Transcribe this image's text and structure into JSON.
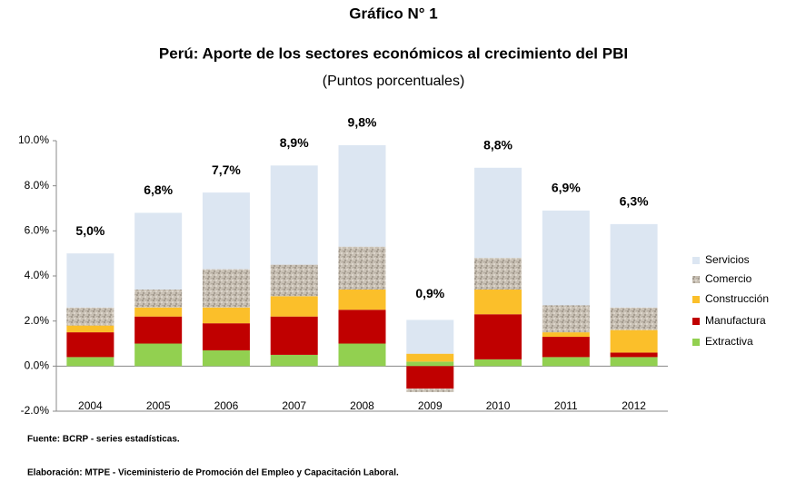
{
  "chart_data": {
    "type": "stacked_bar",
    "title": "Gráfico N° 1",
    "subtitle": "Perú: Aporte de los sectores económicos al crecimiento del PBI",
    "unit_label": "(Puntos porcentuales)",
    "categories": [
      "2004",
      "2005",
      "2006",
      "2007",
      "2008",
      "2009",
      "2010",
      "2011",
      "2012"
    ],
    "series": [
      {
        "name": "Extractiva",
        "color": "#92d050",
        "values": [
          0.4,
          1.0,
          0.7,
          0.5,
          1.0,
          0.2,
          0.3,
          0.4,
          0.4
        ]
      },
      {
        "name": "Manufactura",
        "color": "#c00000",
        "values": [
          1.1,
          1.2,
          1.2,
          1.7,
          1.5,
          -1.0,
          2.0,
          0.9,
          0.2
        ]
      },
      {
        "name": "Construcción",
        "color": "#fbbf2a",
        "values": [
          0.3,
          0.4,
          0.7,
          0.9,
          0.9,
          0.35,
          1.1,
          0.2,
          1.0
        ]
      },
      {
        "name": "Comercio",
        "color": "#bdb5a8",
        "values": [
          0.8,
          0.8,
          1.7,
          1.4,
          1.9,
          -0.15,
          1.4,
          1.2,
          1.0
        ]
      },
      {
        "name": "Servicios",
        "color": "#dce6f2",
        "values": [
          2.4,
          3.4,
          3.4,
          4.4,
          4.5,
          1.5,
          4.0,
          4.2,
          3.7
        ]
      }
    ],
    "total_labels": [
      "5,0%",
      "6,8%",
      "7,7%",
      "8,9%",
      "9,8%",
      "0,9%",
      "8,8%",
      "6,9%",
      "6,3%"
    ],
    "ylim": [
      -2,
      10
    ],
    "yticks": [
      {
        "value": -2,
        "label": "-2.0%"
      },
      {
        "value": 0,
        "label": "0.0%"
      },
      {
        "value": 2,
        "label": "2.0%"
      },
      {
        "value": 4,
        "label": "4.0%"
      },
      {
        "value": 6,
        "label": "6.0%"
      },
      {
        "value": 8,
        "label": "8.0%"
      },
      {
        "value": 10,
        "label": "10.0%"
      }
    ],
    "legend": "right",
    "notes": [
      "Fuente: BCRP - series estadísticas.",
      "Elaboración: MTPE - Viceministerio de Promoción del Empleo y Capacitación Laboral."
    ]
  }
}
